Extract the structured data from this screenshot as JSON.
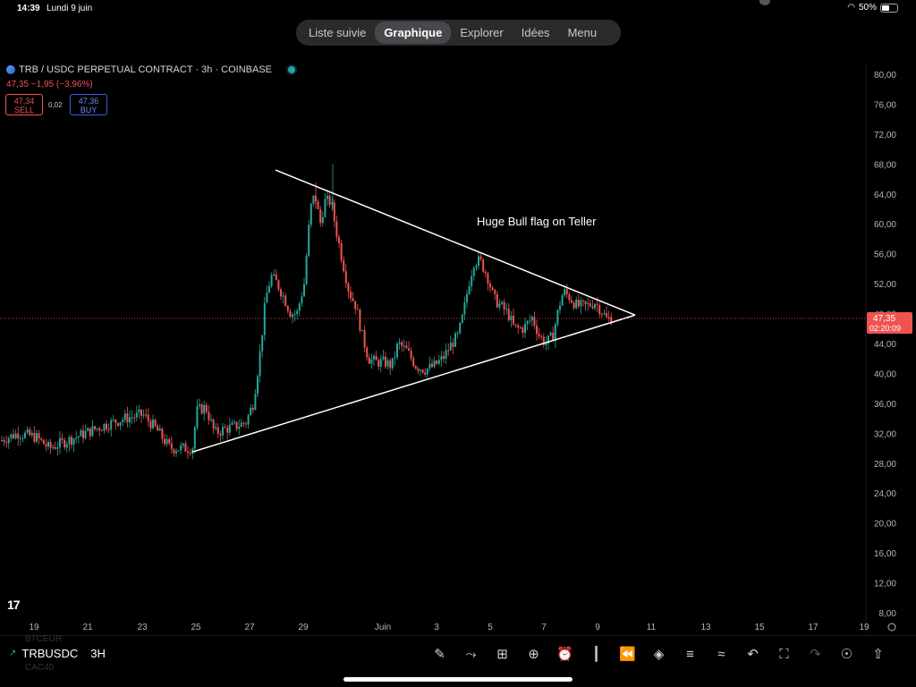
{
  "status_bar": {
    "time": "14:39",
    "date": "Lundi 9 juin",
    "battery": "50%",
    "battery_level": 0.5
  },
  "nav": {
    "tabs": [
      {
        "label": "Liste suivie",
        "active": false
      },
      {
        "label": "Graphique",
        "active": true
      },
      {
        "label": "Explorer",
        "active": false
      },
      {
        "label": "Idées",
        "active": false
      },
      {
        "label": "Menu",
        "active": false
      }
    ]
  },
  "header": {
    "symbol": "TRB / USDC PERPETUAL CONTRACT · 3h · COINBASE",
    "price_change": "47,35  −1,95 (−3,96%)",
    "sell_price": "47,34",
    "sell_label": "SELL",
    "spread": "0,02",
    "buy_price": "47,36",
    "buy_label": "BUY"
  },
  "chart_data": {
    "type": "candlestick",
    "annotation": "Huge Bull flag on Teller",
    "y_ticks": [
      "80,00",
      "76,00",
      "72,00",
      "68,00",
      "64,00",
      "60,00",
      "56,00",
      "52,00",
      "48,00",
      "44,00",
      "40,00",
      "36,00",
      "32,00",
      "28,00",
      "24,00",
      "20,00",
      "16,00",
      "12,00",
      "8,00"
    ],
    "y_range": [
      8,
      80
    ],
    "x_ticks": [
      "19",
      "21",
      "23",
      "25",
      "27",
      "29",
      "Juin",
      "3",
      "5",
      "7",
      "9",
      "11",
      "13",
      "15",
      "17",
      "19"
    ],
    "current_price": "47,35",
    "countdown": "02:20:09",
    "colors": {
      "up": "#26a69a",
      "down": "#ef5350",
      "lines": "#ffffff",
      "price_line": "#ef5350"
    }
  },
  "bottom": {
    "symbol": "TRBUSDC",
    "interval": "3H",
    "ghost_above": "BTCEUR",
    "ghost_below": "CAC40",
    "tools": [
      "pen-icon",
      "indicator-icon",
      "grid-icon",
      "plus-icon",
      "alarm-icon",
      "candles-icon",
      "replay-icon",
      "layers-icon",
      "settings-icon",
      "trend-icon",
      "undo-icon",
      "fullscreen-icon",
      "redo-icon",
      "idea-icon",
      "share-icon"
    ]
  }
}
